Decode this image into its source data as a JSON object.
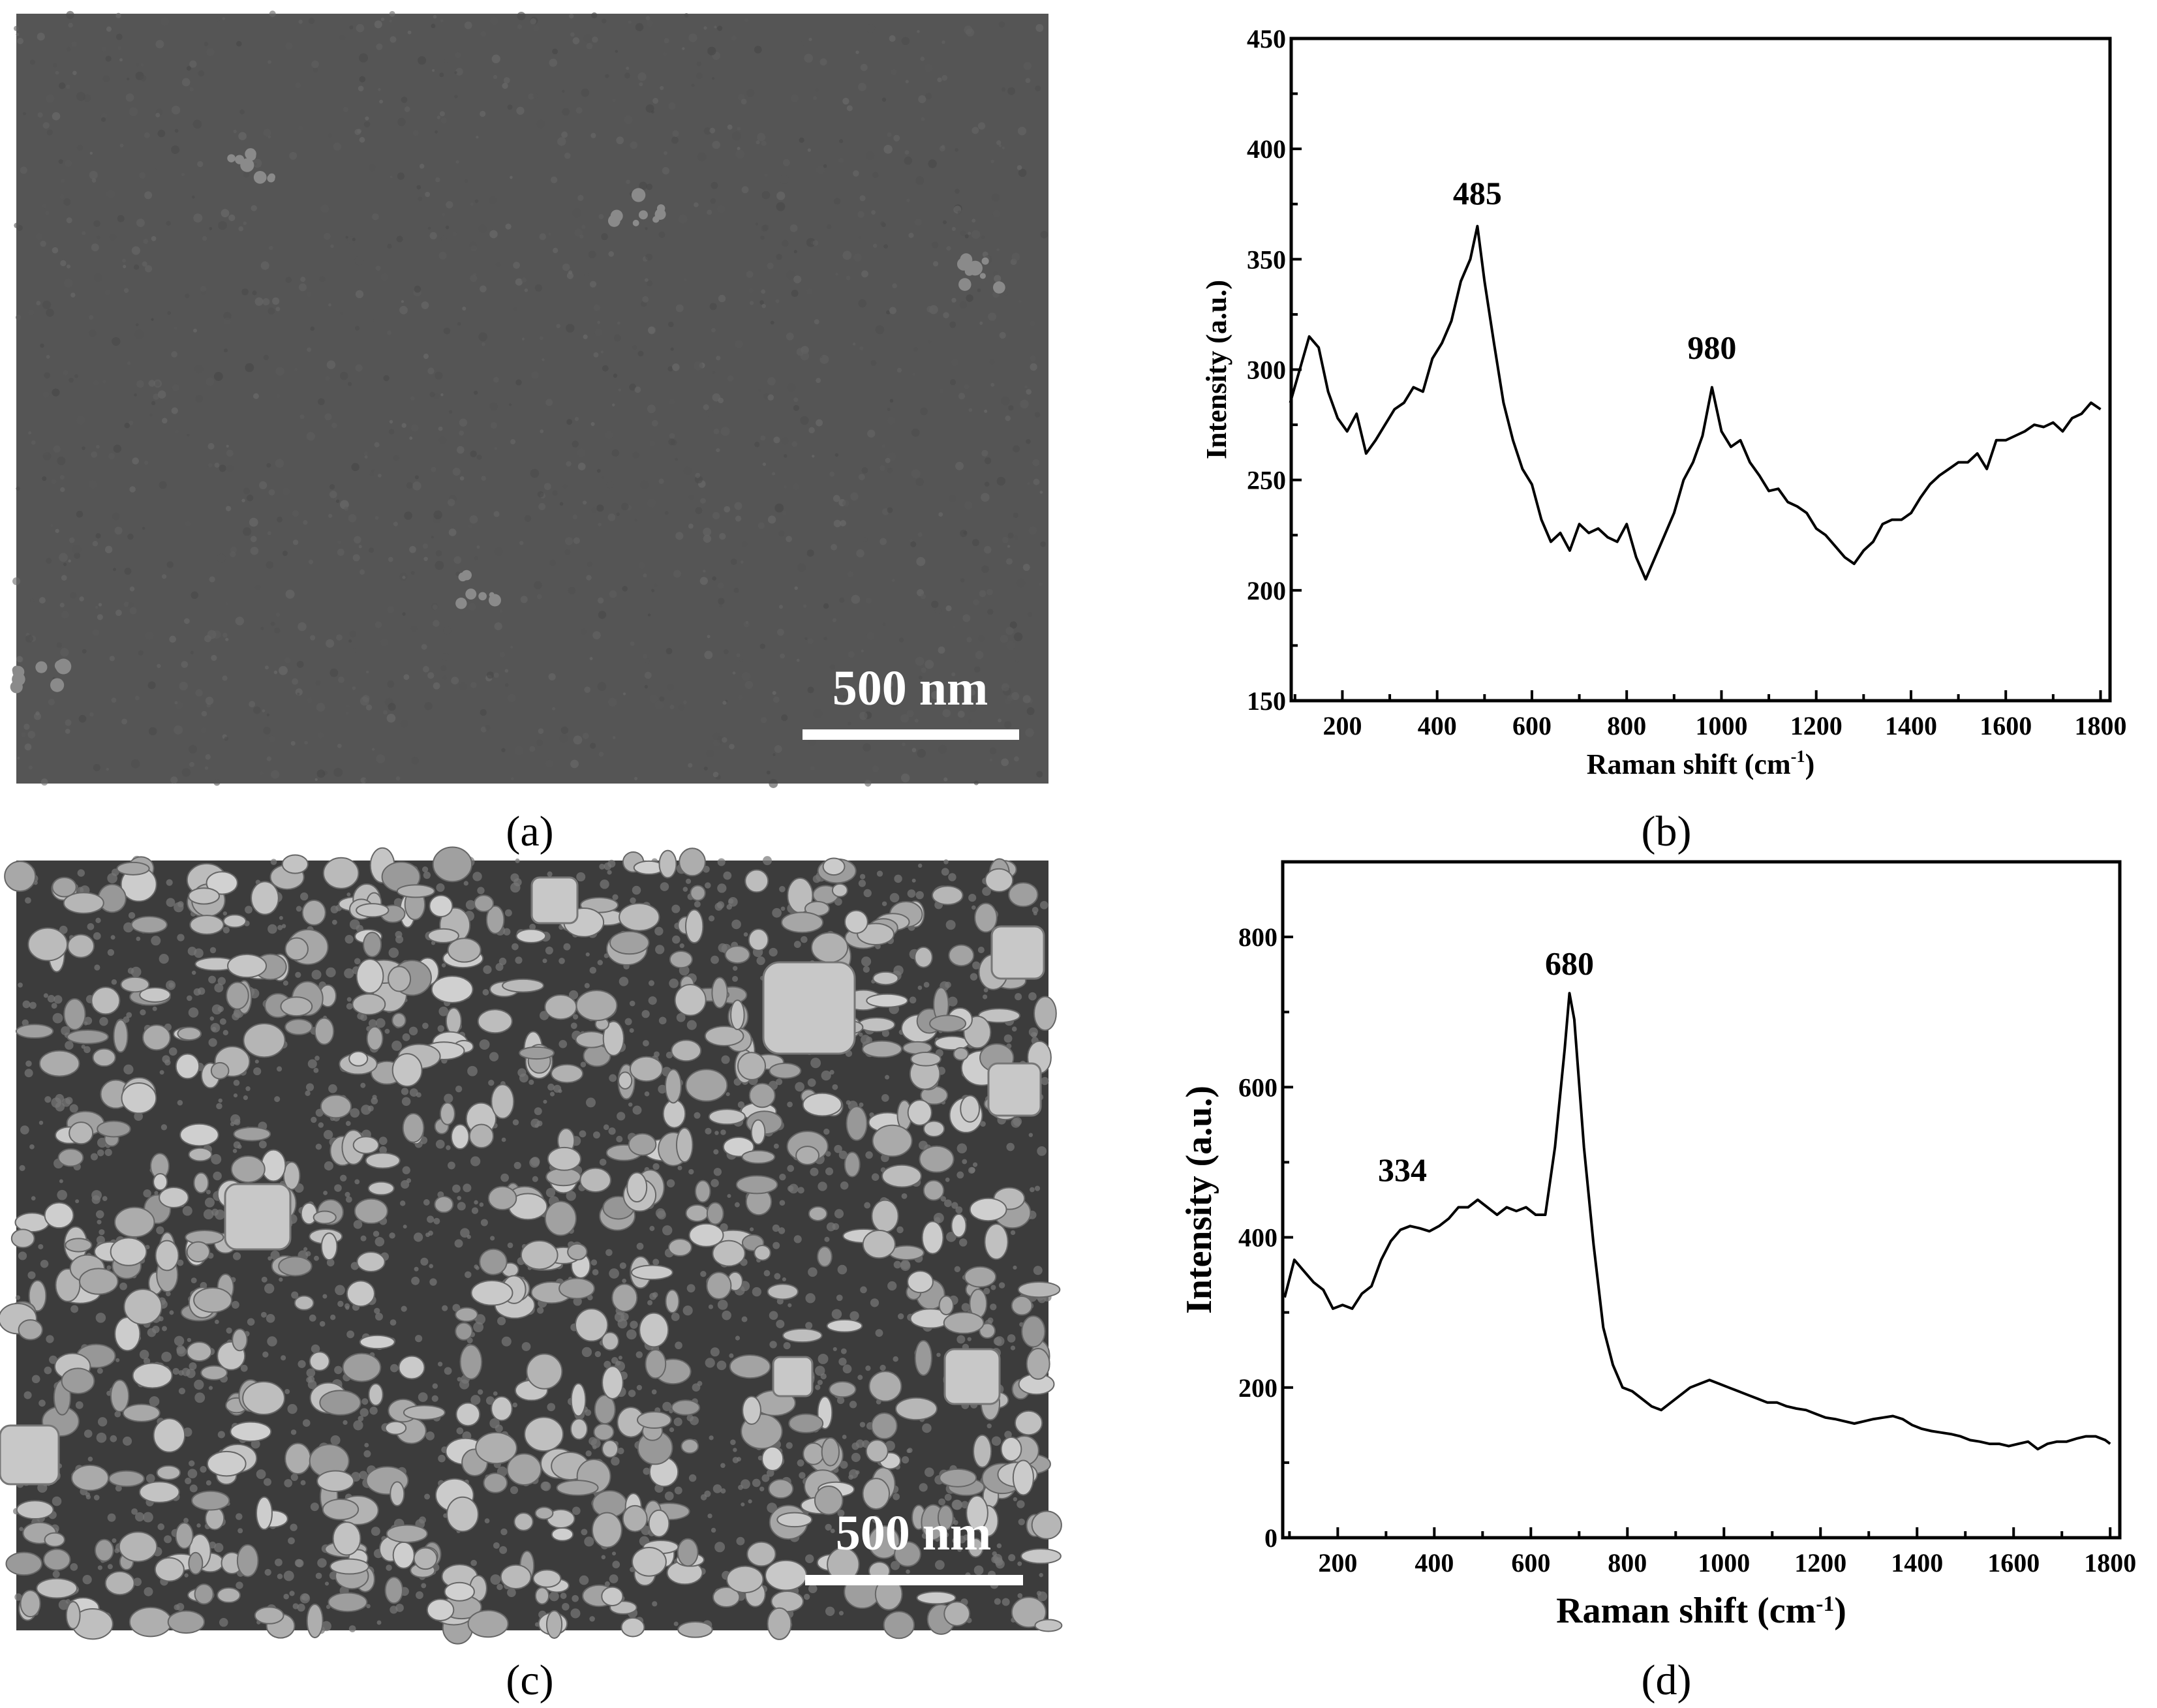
{
  "panels": {
    "a": {
      "caption": "(a)",
      "scale_bar": "500 nm"
    },
    "b": {
      "caption": "(b)"
    },
    "c": {
      "caption": "(c)",
      "scale_bar": "500 nm"
    },
    "d": {
      "caption": "(d)"
    }
  },
  "chart_data": [
    {
      "panel": "b",
      "type": "line",
      "xlabel": "Raman shift (cm",
      "xlabel_sup": "-1",
      "xlabel_end": ")",
      "ylabel": "Intensity (a.u.)",
      "xlim": [
        92,
        1820
      ],
      "ylim": [
        150,
        450
      ],
      "xticks": [
        200,
        400,
        600,
        800,
        1000,
        1200,
        1400,
        1600,
        1800
      ],
      "yticks": [
        150,
        200,
        250,
        300,
        350,
        400,
        450
      ],
      "grid": false,
      "line_color": "#000000",
      "annotations": [
        {
          "text": "485",
          "x": 485,
          "y": 375
        },
        {
          "text": "980",
          "x": 980,
          "y": 305
        }
      ],
      "x": [
        90,
        110,
        130,
        150,
        170,
        190,
        210,
        230,
        250,
        270,
        290,
        310,
        330,
        350,
        370,
        390,
        410,
        430,
        450,
        470,
        485,
        500,
        520,
        540,
        560,
        580,
        600,
        620,
        640,
        660,
        680,
        700,
        720,
        740,
        760,
        780,
        800,
        820,
        840,
        860,
        880,
        900,
        920,
        940,
        960,
        980,
        1000,
        1020,
        1040,
        1060,
        1080,
        1100,
        1120,
        1140,
        1160,
        1180,
        1200,
        1220,
        1240,
        1260,
        1280,
        1300,
        1320,
        1340,
        1360,
        1380,
        1400,
        1420,
        1440,
        1460,
        1480,
        1500,
        1520,
        1540,
        1560,
        1580,
        1600,
        1620,
        1640,
        1660,
        1680,
        1700,
        1720,
        1740,
        1760,
        1780,
        1800
      ],
      "y": [
        285,
        300,
        315,
        310,
        290,
        278,
        272,
        280,
        262,
        268,
        275,
        282,
        285,
        292,
        290,
        305,
        312,
        322,
        340,
        350,
        365,
        340,
        312,
        285,
        268,
        255,
        248,
        232,
        222,
        226,
        218,
        230,
        226,
        228,
        224,
        222,
        230,
        215,
        205,
        215,
        225,
        235,
        250,
        258,
        270,
        292,
        272,
        265,
        268,
        258,
        252,
        245,
        246,
        240,
        238,
        235,
        228,
        225,
        220,
        215,
        212,
        218,
        222,
        230,
        232,
        232,
        235,
        242,
        248,
        252,
        255,
        258,
        258,
        262,
        255,
        268,
        268,
        270,
        272,
        275,
        274,
        276,
        272,
        278,
        280,
        285,
        282
      ]
    },
    {
      "panel": "d",
      "type": "line",
      "xlabel": "Raman shift (cm",
      "xlabel_sup": "-1",
      "xlabel_end": ")",
      "ylabel": "Intensity (a.u.)",
      "xlim": [
        86,
        1820
      ],
      "ylim": [
        0,
        900
      ],
      "xticks": [
        200,
        400,
        600,
        800,
        1000,
        1200,
        1400,
        1600,
        1800
      ],
      "yticks": [
        0,
        200,
        400,
        600,
        800
      ],
      "grid": false,
      "line_color": "#000000",
      "annotations": [
        {
          "text": "334",
          "x": 334,
          "y": 475
        },
        {
          "text": "680",
          "x": 680,
          "y": 750
        }
      ],
      "x": [
        90,
        110,
        130,
        150,
        170,
        190,
        210,
        230,
        250,
        270,
        290,
        310,
        330,
        350,
        370,
        390,
        410,
        430,
        450,
        470,
        490,
        510,
        530,
        550,
        570,
        590,
        610,
        630,
        650,
        670,
        680,
        690,
        710,
        730,
        750,
        770,
        790,
        810,
        830,
        850,
        870,
        890,
        910,
        930,
        950,
        970,
        990,
        1010,
        1030,
        1050,
        1070,
        1090,
        1110,
        1130,
        1150,
        1170,
        1190,
        1210,
        1230,
        1250,
        1270,
        1290,
        1310,
        1330,
        1350,
        1370,
        1390,
        1410,
        1430,
        1450,
        1470,
        1490,
        1510,
        1530,
        1550,
        1570,
        1590,
        1610,
        1630,
        1650,
        1670,
        1690,
        1710,
        1730,
        1750,
        1770,
        1790,
        1800
      ],
      "y": [
        320,
        370,
        355,
        340,
        330,
        305,
        310,
        305,
        325,
        335,
        370,
        395,
        410,
        415,
        412,
        408,
        415,
        425,
        440,
        440,
        450,
        440,
        430,
        440,
        435,
        440,
        430,
        430,
        520,
        650,
        725,
        690,
        520,
        390,
        280,
        230,
        200,
        195,
        185,
        175,
        170,
        180,
        190,
        200,
        205,
        210,
        205,
        200,
        195,
        190,
        185,
        180,
        180,
        175,
        172,
        170,
        165,
        160,
        158,
        155,
        152,
        155,
        158,
        160,
        162,
        158,
        150,
        145,
        142,
        140,
        138,
        135,
        130,
        128,
        125,
        125,
        122,
        125,
        128,
        118,
        125,
        128,
        128,
        132,
        135,
        135,
        130,
        125
      ]
    }
  ]
}
